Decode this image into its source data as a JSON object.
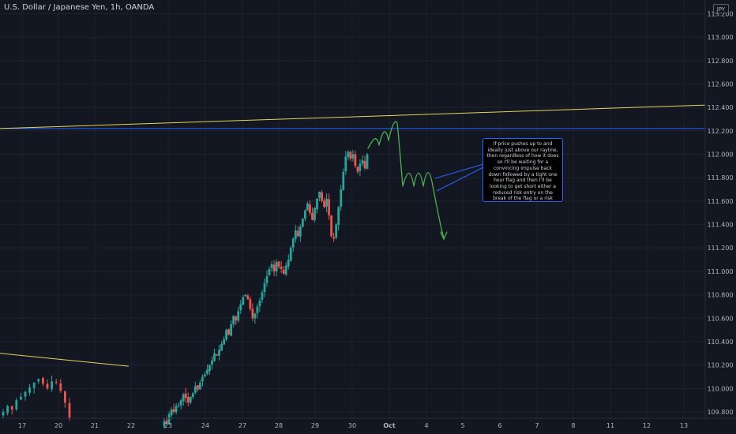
{
  "header": {
    "title": "U.S. Dollar / Japanese Yen, 1h, OANDA",
    "currency_badge": "JPY"
  },
  "annotation": {
    "text": "If price pushes up to and ideally just above our rayline, then regardless of how it does so I'll be waiting for a convincing impulse back down followed by a tight one hour flag and then I'll be looking to get short either a reduced risk entry on the break of the flag or a risk entry within it."
  },
  "colors": {
    "background": "#131722",
    "grid": "#1e2230",
    "bull_candle": "#26a69a",
    "bear_candle": "#ef5350",
    "horizontal_line": "#2962ff",
    "trendline": "#e3d45a",
    "projection_path": "#4caf50",
    "axis_text": "#b2b5be"
  },
  "chart_data": {
    "type": "candlestick",
    "symbol": "USDJPY",
    "timeframe": "1h",
    "x_tick_labels": [
      "17",
      "20",
      "21",
      "22",
      "23",
      "24",
      "27",
      "28",
      "29",
      "30",
      "Oct",
      "4",
      "5",
      "6",
      "7",
      "8",
      "11",
      "12",
      "13"
    ],
    "y_tick_labels": [
      "109.800",
      "110.000",
      "110.200",
      "110.400",
      "110.600",
      "110.800",
      "111.000",
      "111.200",
      "111.400",
      "111.600",
      "111.800",
      "112.000",
      "112.200",
      "112.400",
      "112.600",
      "112.800",
      "113.000",
      "113.200"
    ],
    "ylim": [
      109.79,
      113.3
    ],
    "horizontal_level": 112.22,
    "rising_trendline": {
      "from": 112.22,
      "to": 112.42
    },
    "lower_trendline": {
      "from": 110.3,
      "to": 110.19
    },
    "close_path": [
      109.8,
      109.85,
      109.82,
      109.9,
      109.93,
      109.97,
      110.01,
      110.05,
      110.08,
      110.04,
      110.0,
      110.06,
      110.05,
      109.98,
      109.88,
      109.75,
      109.68,
      109.72,
      109.7,
      109.78,
      109.82,
      109.8,
      109.85,
      109.86,
      109.9,
      109.95,
      109.92,
      109.88,
      109.93,
      109.96,
      110.02,
      109.99,
      110.05,
      110.1,
      110.12,
      110.16,
      110.2,
      110.24,
      110.3,
      110.28,
      110.33,
      110.38,
      110.42,
      110.5,
      110.46,
      110.55,
      110.62,
      110.58,
      110.66,
      110.72,
      110.78,
      110.8,
      110.76,
      110.68,
      110.6,
      110.64,
      110.7,
      110.75,
      110.82,
      110.9,
      110.96,
      111.02,
      111.06,
      111.0,
      111.08,
      111.04,
      111.02,
      110.98,
      111.05,
      111.1,
      111.2,
      111.28,
      111.35,
      111.3,
      111.38,
      111.45,
      111.52,
      111.58,
      111.5,
      111.44,
      111.54,
      111.62,
      111.68,
      111.6,
      111.55,
      111.62,
      111.48,
      111.3,
      111.28,
      111.4,
      111.55,
      111.7,
      111.85,
      111.98,
      112.02,
      111.96,
      112.0,
      111.9,
      111.85,
      111.92,
      111.95,
      111.88,
      112.0
    ],
    "projection_label": "projected price path (drawing)"
  }
}
